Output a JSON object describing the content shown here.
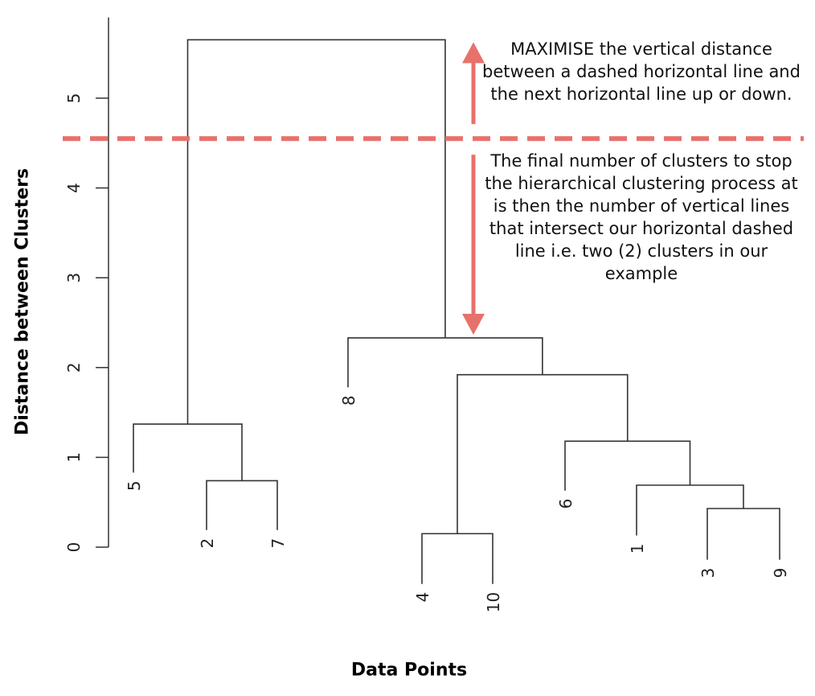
{
  "chart_data": {
    "type": "dendrogram",
    "xlabel": "Data Points",
    "ylabel": "Distance between Clusters",
    "ylim": [
      0,
      5.7
    ],
    "y_ticks": [
      0,
      1,
      2,
      3,
      4,
      5
    ],
    "leaves": [
      "5",
      "2",
      "7",
      "8",
      "4",
      "10",
      "6",
      "1",
      "3",
      "9"
    ],
    "merges": [
      {
        "left": "3",
        "right": "9",
        "height": 0.43
      },
      {
        "left": "1",
        "right": "{3,9}",
        "height": 0.69
      },
      {
        "left": "2",
        "right": "7",
        "height": 0.74
      },
      {
        "left": "4",
        "right": "10",
        "height": 0.15
      },
      {
        "left": "6",
        "right": "{1,3,9}",
        "height": 1.18
      },
      {
        "left": "5",
        "right": "{2,7}",
        "height": 1.37
      },
      {
        "left": "{4,10}",
        "right": "{6,1,3,9}",
        "height": 1.92
      },
      {
        "left": "8",
        "right": "{4,10,6,1,3,9}",
        "height": 2.33
      },
      {
        "left": "{5,2,7}",
        "right": "{8,4,10,6,1,3,9}",
        "height": 5.65
      }
    ],
    "cut_height": 4.55,
    "annotations": [
      "MAXIMISE the vertical distance between a dashed horizontal line and the next horizontal line up or down.",
      "The final number of clusters to stop the hierarchical clustering process at is then the number of vertical lines that intersect our horizontal dashed line i.e. two (2) clusters in our example"
    ],
    "colors": {
      "tree": "#333333",
      "cut_line": "#e8716b",
      "arrows": "#e8716b"
    }
  }
}
